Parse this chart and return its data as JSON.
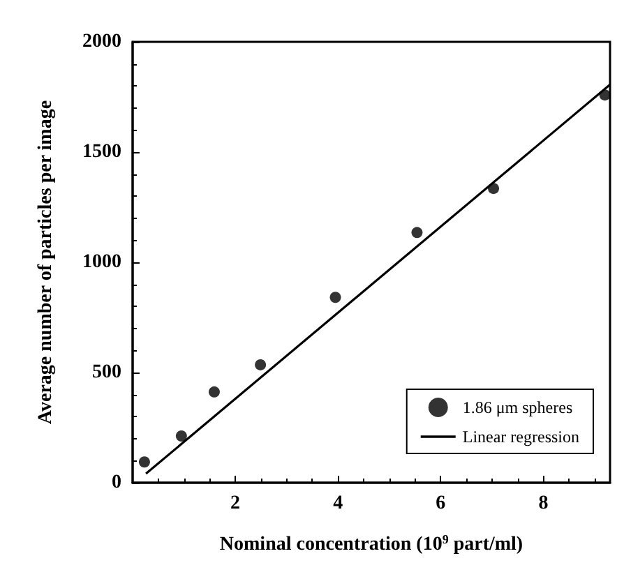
{
  "chart_data": {
    "type": "scatter",
    "xlabel": "Nominal concentration (10$^{9}$ part/ml)",
    "ylabel": "Average number of particles per image",
    "xlim": [
      0,
      9.3
    ],
    "ylim": [
      0,
      2000
    ],
    "xticks": [
      2,
      4,
      6,
      8
    ],
    "yticks": [
      0,
      500,
      1000,
      1500,
      2000
    ],
    "grid": false,
    "legend": "bottom right",
    "marker": "circle",
    "series": [
      {
        "name": "1.86 μm spheres",
        "color": "#000000",
        "x": [
          0.23,
          0.95,
          1.59,
          2.49,
          3.95,
          5.54,
          7.03,
          9.2
        ],
        "values": [
          94,
          212,
          412,
          535,
          841,
          1135,
          1335,
          1759
        ]
      },
      {
        "name": "Linear regression",
        "type": "line",
        "color": "#000000",
        "line_style": "solid",
        "marker": "none",
        "x": [
          0.26,
          9.3
        ],
        "values": [
          41,
          1806
        ]
      }
    ]
  }
}
